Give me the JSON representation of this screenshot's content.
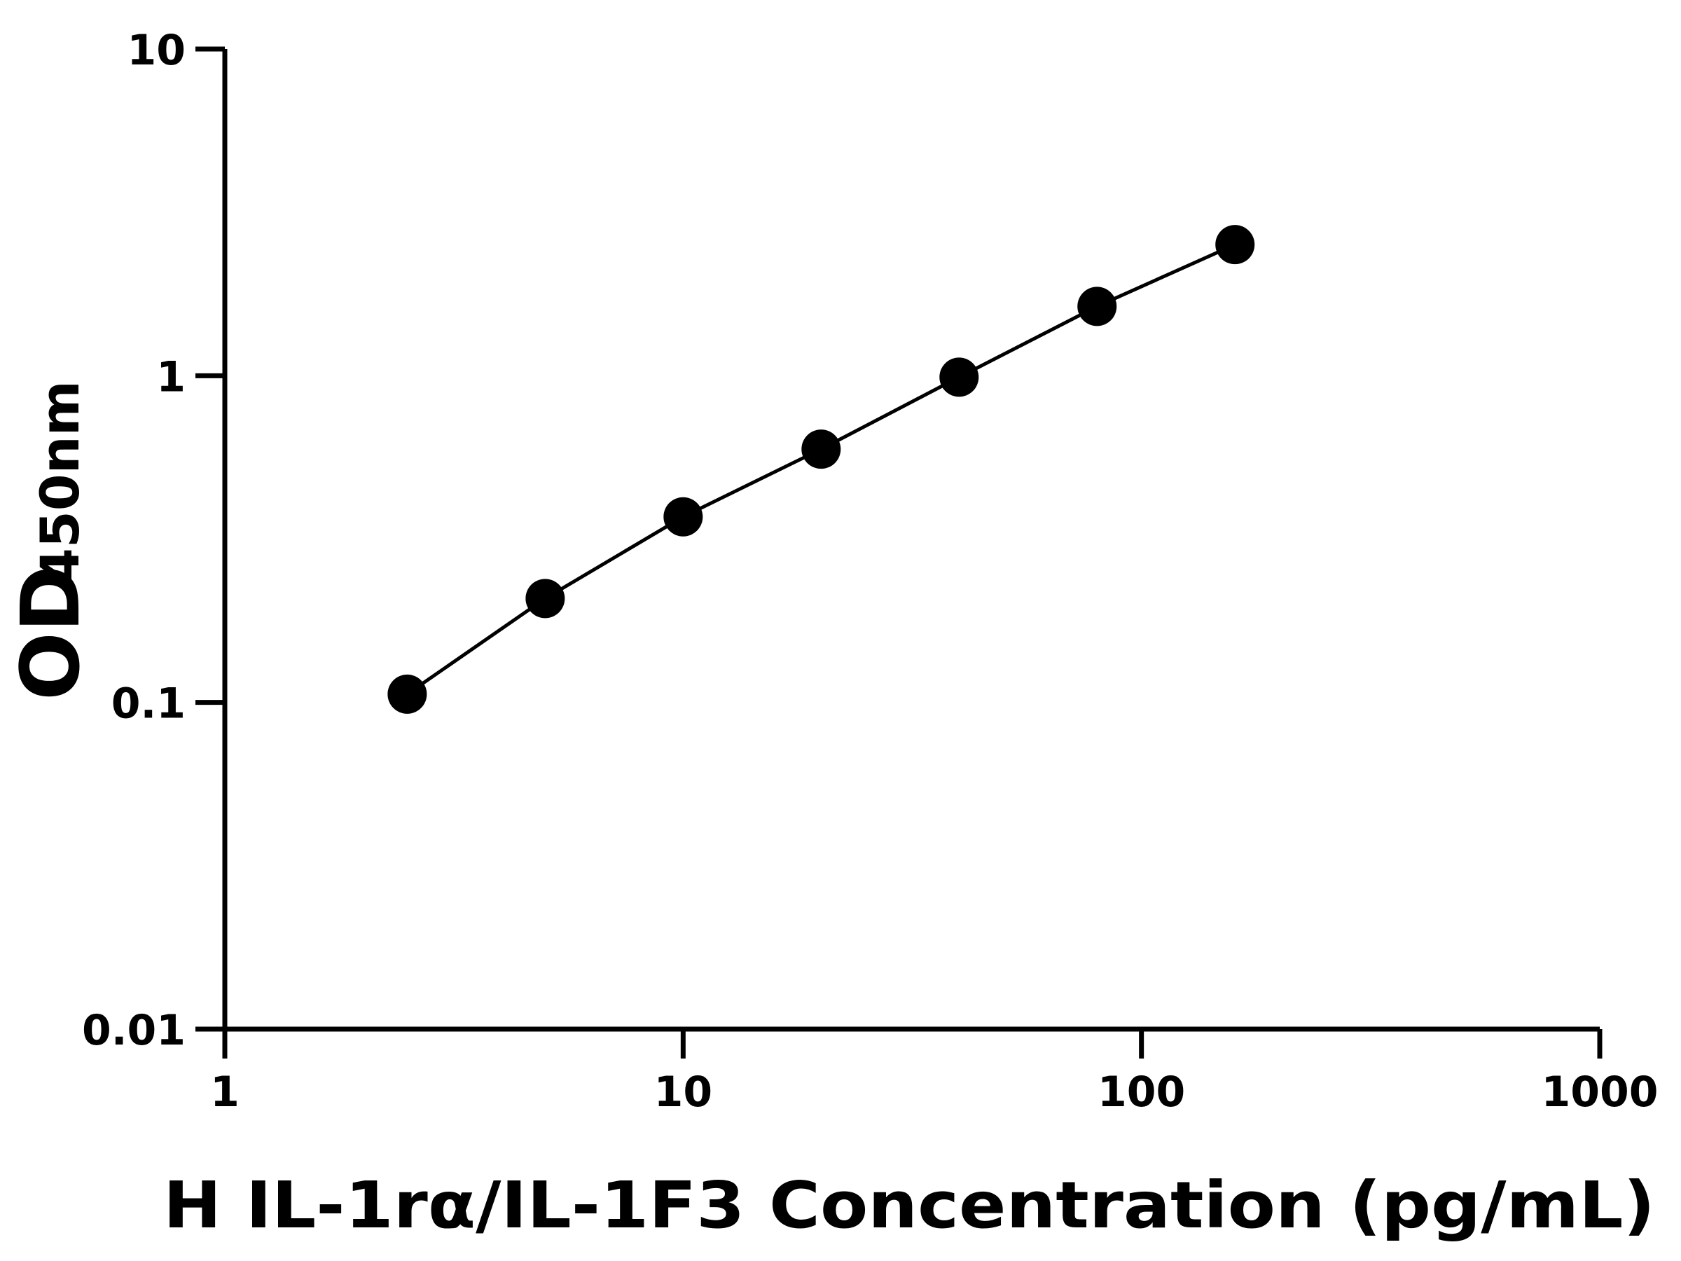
{
  "chart_data": {
    "type": "line",
    "x_label": "H IL-1rα/IL-1F3 Concentration (pg/mL)",
    "y_label": "OD",
    "y_label_subscript": "450nm",
    "x": [
      2.5,
      5,
      10,
      20,
      40,
      80,
      160
    ],
    "series": [
      {
        "color": "#000000",
        "values": [
          0.106,
          0.208,
          0.37,
          0.596,
          0.99,
          1.63,
          2.52
        ]
      }
    ],
    "xscale": "log",
    "yscale": "log",
    "xlim": [
      1,
      1000
    ],
    "ylim": [
      0.01,
      10
    ],
    "xticks": [
      1,
      10,
      100,
      1000
    ],
    "yticks": [
      0.01,
      0.1,
      1,
      10
    ]
  }
}
